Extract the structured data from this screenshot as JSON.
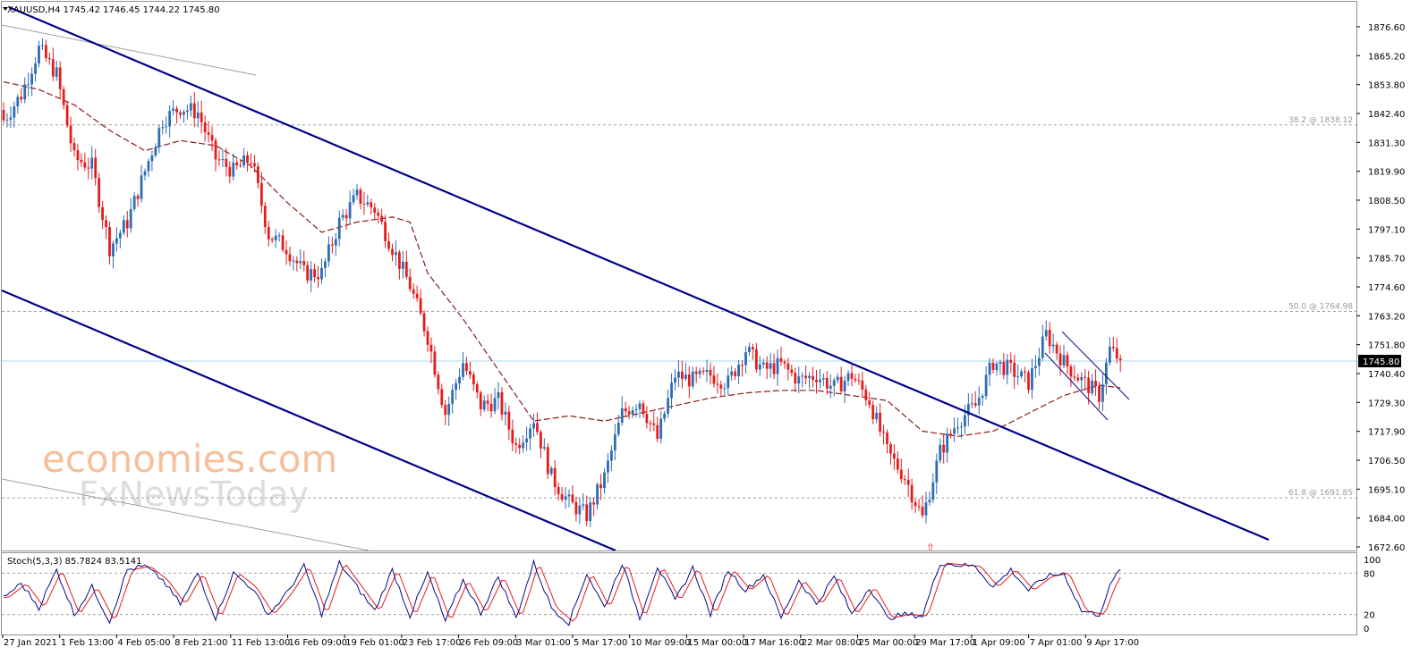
{
  "main_panel": {
    "symbol_line": "XAUUSD,H4  1745.42 1746.45 1744.22 1745.80",
    "price_labels": [
      "1876.60",
      "1865.20",
      "1853.80",
      "1842.40",
      "1831.30",
      "1819.90",
      "1808.50",
      "1797.10",
      "1785.70",
      "1774.60",
      "1763.20",
      "1751.80",
      "1740.40",
      "1729.30",
      "1717.90",
      "1706.50",
      "1695.10",
      "1684.00",
      "1672.60"
    ],
    "current_price": "1745.80",
    "fib_levels": [
      {
        "label": "38.2 @ 1838.12",
        "price": 1838.12
      },
      {
        "label": "50.0 @ 1764.98",
        "price": 1764.98
      },
      {
        "label": "61.8 @ 1691.85",
        "price": 1691.85
      }
    ],
    "watermark_line1": "economies.com",
    "watermark_line2": "FxNewsToday",
    "down_arrow_glyph": "⇧"
  },
  "stoch_panel": {
    "title": "Stoch(5,3,3) 85.7824 83.5141",
    "levels": [
      "100",
      "80",
      "20",
      "0"
    ]
  },
  "time_axis": {
    "labels": [
      "27 Jan 2021",
      "1 Feb 13:00",
      "4 Feb 05:00",
      "8 Feb 21:00",
      "11 Feb 13:00",
      "16 Feb 09:00",
      "19 Feb 01:00",
      "23 Feb 17:00",
      "26 Feb 09:00",
      "3 Mar 01:00",
      "5 Mar 17:00",
      "10 Mar 09:00",
      "15 Mar 00:00",
      "17 Mar 16:00",
      "22 Mar 08:00",
      "25 Mar 00:00",
      "29 Mar 17:00",
      "1 Apr 09:00",
      "7 Apr 01:00",
      "9 Apr 17:00"
    ]
  },
  "colors": {
    "bull": "#2e6db4",
    "bear": "#e51c1c",
    "trendline": "#00008b",
    "ma": "#8b1a1a",
    "stoch_main": "#0a0a80",
    "stoch_signal": "#e51c1c",
    "grid_dash": "#a0a0a0",
    "current_line": "#a8d8ec",
    "watermark": "#f6b992"
  },
  "chart_data": {
    "type": "candlestick",
    "symbol": "XAUUSD",
    "timeframe": "H4",
    "y_range": [
      1672.6,
      1880.0
    ],
    "close_path": [
      [
        0,
        1840
      ],
      [
        5,
        1850
      ],
      [
        10,
        1868
      ],
      [
        15,
        1858
      ],
      [
        20,
        1825
      ],
      [
        25,
        1822
      ],
      [
        30,
        1790
      ],
      [
        35,
        1800
      ],
      [
        40,
        1820
      ],
      [
        45,
        1840
      ],
      [
        50,
        1845
      ],
      [
        55,
        1843
      ],
      [
        60,
        1825
      ],
      [
        65,
        1820
      ],
      [
        70,
        1825
      ],
      [
        75,
        1795
      ],
      [
        80,
        1790
      ],
      [
        85,
        1780
      ],
      [
        90,
        1780
      ],
      [
        95,
        1800
      ],
      [
        100,
        1810
      ],
      [
        105,
        1805
      ],
      [
        110,
        1790
      ],
      [
        115,
        1775
      ],
      [
        120,
        1755
      ],
      [
        125,
        1725
      ],
      [
        130,
        1745
      ],
      [
        135,
        1728
      ],
      [
        140,
        1730
      ],
      [
        145,
        1712
      ],
      [
        150,
        1723
      ],
      [
        155,
        1700
      ],
      [
        160,
        1690
      ],
      [
        165,
        1685
      ],
      [
        170,
        1700
      ],
      [
        175,
        1725
      ],
      [
        180,
        1730
      ],
      [
        185,
        1715
      ],
      [
        190,
        1740
      ],
      [
        195,
        1738
      ],
      [
        200,
        1740
      ],
      [
        205,
        1737
      ],
      [
        210,
        1750
      ],
      [
        215,
        1742
      ],
      [
        220,
        1744
      ],
      [
        225,
        1738
      ],
      [
        230,
        1740
      ],
      [
        235,
        1735
      ],
      [
        240,
        1740
      ],
      [
        245,
        1730
      ],
      [
        250,
        1710
      ],
      [
        255,
        1700
      ],
      [
        260,
        1684
      ],
      [
        265,
        1710
      ],
      [
        270,
        1722
      ],
      [
        275,
        1728
      ],
      [
        280,
        1745
      ],
      [
        285,
        1742
      ],
      [
        290,
        1737
      ],
      [
        295,
        1756
      ],
      [
        300,
        1745
      ],
      [
        305,
        1738
      ],
      [
        310,
        1732
      ],
      [
        313,
        1750
      ],
      [
        316,
        1746
      ]
    ],
    "stoch_path": [
      [
        0,
        45
      ],
      [
        5,
        65
      ],
      [
        10,
        30
      ],
      [
        15,
        85
      ],
      [
        20,
        20
      ],
      [
        25,
        60
      ],
      [
        30,
        10
      ],
      [
        35,
        85
      ],
      [
        40,
        90
      ],
      [
        45,
        70
      ],
      [
        50,
        35
      ],
      [
        55,
        80
      ],
      [
        60,
        15
      ],
      [
        65,
        80
      ],
      [
        70,
        60
      ],
      [
        75,
        20
      ],
      [
        80,
        50
      ],
      [
        85,
        90
      ],
      [
        90,
        20
      ],
      [
        95,
        95
      ],
      [
        100,
        60
      ],
      [
        105,
        25
      ],
      [
        110,
        85
      ],
      [
        115,
        18
      ],
      [
        120,
        80
      ],
      [
        125,
        10
      ],
      [
        130,
        70
      ],
      [
        135,
        22
      ],
      [
        140,
        75
      ],
      [
        145,
        15
      ],
      [
        150,
        95
      ],
      [
        155,
        30
      ],
      [
        160,
        8
      ],
      [
        165,
        80
      ],
      [
        170,
        30
      ],
      [
        175,
        95
      ],
      [
        180,
        15
      ],
      [
        185,
        90
      ],
      [
        190,
        40
      ],
      [
        195,
        88
      ],
      [
        200,
        20
      ],
      [
        205,
        85
      ],
      [
        210,
        55
      ],
      [
        215,
        78
      ],
      [
        220,
        15
      ],
      [
        225,
        70
      ],
      [
        230,
        35
      ],
      [
        235,
        75
      ],
      [
        240,
        20
      ],
      [
        245,
        60
      ],
      [
        250,
        15
      ],
      [
        255,
        20
      ],
      [
        260,
        18
      ],
      [
        265,
        95
      ],
      [
        270,
        92
      ],
      [
        275,
        90
      ],
      [
        280,
        60
      ],
      [
        285,
        85
      ],
      [
        290,
        55
      ],
      [
        295,
        75
      ],
      [
        300,
        80
      ],
      [
        305,
        25
      ],
      [
        310,
        20
      ],
      [
        313,
        60
      ],
      [
        316,
        88
      ]
    ],
    "ma_path": [
      [
        0,
        1855
      ],
      [
        10,
        1852
      ],
      [
        20,
        1846
      ],
      [
        30,
        1836
      ],
      [
        40,
        1828
      ],
      [
        50,
        1832
      ],
      [
        60,
        1830
      ],
      [
        70,
        1822
      ],
      [
        80,
        1808
      ],
      [
        90,
        1796
      ],
      [
        100,
        1800
      ],
      [
        110,
        1802
      ],
      [
        115,
        1800
      ],
      [
        120,
        1780
      ],
      [
        130,
        1762
      ],
      [
        140,
        1742
      ],
      [
        150,
        1722
      ],
      [
        160,
        1724
      ],
      [
        170,
        1722
      ],
      [
        180,
        1725
      ],
      [
        190,
        1728
      ],
      [
        200,
        1731
      ],
      [
        210,
        1733
      ],
      [
        220,
        1734
      ],
      [
        230,
        1734
      ],
      [
        240,
        1732
      ],
      [
        250,
        1730
      ],
      [
        260,
        1718
      ],
      [
        270,
        1716
      ],
      [
        280,
        1718
      ],
      [
        290,
        1725
      ],
      [
        300,
        1732
      ],
      [
        310,
        1736
      ],
      [
        316,
        1735
      ]
    ]
  }
}
